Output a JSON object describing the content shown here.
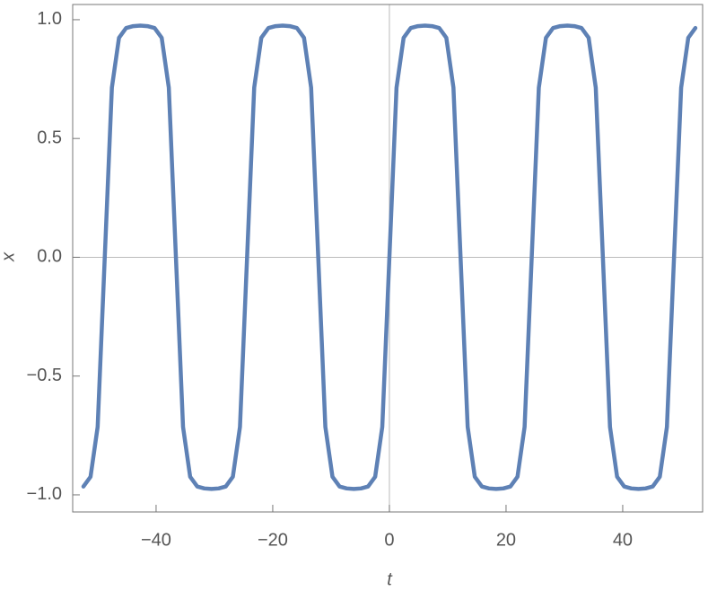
{
  "chart_data": {
    "type": "line",
    "xlabel": "t",
    "ylabel": "x",
    "x": [
      -52.46,
      -51.24,
      -50.02,
      -48.8,
      -47.58,
      -46.36,
      -45.14,
      -43.92,
      -42.7,
      -41.48,
      -40.26,
      -39.04,
      -37.82,
      -36.6,
      -35.38,
      -34.16,
      -32.94,
      -31.72,
      -30.5,
      -29.28,
      -28.06,
      -26.84,
      -25.62,
      -24.4,
      -23.18,
      -21.96,
      -20.74,
      -19.52,
      -18.3,
      -17.08,
      -15.86,
      -14.64,
      -13.42,
      -12.2,
      -10.98,
      -9.76,
      -8.54,
      -7.32,
      -6.1,
      -4.88,
      -3.66,
      -2.44,
      -1.22,
      0,
      1.22,
      2.44,
      3.66,
      4.88,
      6.1,
      7.32,
      8.54,
      9.76,
      10.98,
      12.2,
      13.42,
      14.64,
      15.86,
      17.08,
      18.3,
      19.52,
      20.74,
      21.96,
      23.18,
      24.4,
      25.62,
      26.84,
      28.06,
      29.28,
      30.5,
      31.72,
      32.94,
      34.16,
      35.38,
      36.6,
      37.82,
      39.04,
      40.26,
      41.48,
      42.7,
      43.92,
      45.14,
      46.36,
      47.58,
      48.8,
      50.02,
      51.24,
      52.46
    ],
    "series": [
      {
        "color": "#5e81b5",
        "values": [
          -0.965,
          -0.924,
          -0.714,
          0,
          0.714,
          0.924,
          0.965,
          0.973,
          0.975,
          0.973,
          0.965,
          0.924,
          0.714,
          0,
          -0.714,
          -0.924,
          -0.965,
          -0.973,
          -0.975,
          -0.973,
          -0.965,
          -0.924,
          -0.714,
          0,
          0.714,
          0.924,
          0.965,
          0.973,
          0.975,
          0.973,
          0.965,
          0.924,
          0.714,
          0,
          -0.714,
          -0.924,
          -0.965,
          -0.973,
          -0.975,
          -0.973,
          -0.965,
          -0.924,
          -0.714,
          0,
          0.714,
          0.924,
          0.965,
          0.973,
          0.975,
          0.973,
          0.965,
          0.924,
          0.714,
          0,
          -0.714,
          -0.924,
          -0.965,
          -0.973,
          -0.975,
          -0.973,
          -0.965,
          -0.924,
          -0.714,
          0,
          0.714,
          0.924,
          0.965,
          0.973,
          0.975,
          0.973,
          0.965,
          0.924,
          0.714,
          0,
          -0.714,
          -0.924,
          -0.965,
          -0.973,
          -0.975,
          -0.973,
          -0.965,
          -0.924,
          -0.714,
          0,
          0.714,
          0.924,
          0.965
        ]
      }
    ],
    "xlim": [
      -54.3,
      53.7
    ],
    "ylim": [
      -1.072,
      1.064
    ],
    "xticks": [
      {
        "value": -40,
        "label": "−40"
      },
      {
        "value": -20,
        "label": "−20"
      },
      0,
      20,
      40
    ],
    "yticks": [
      {
        "value": -1,
        "label": "−1.0"
      },
      {
        "value": -0.5,
        "label": "−0.5"
      },
      {
        "value": 0,
        "label": "0.0"
      },
      {
        "value": 0.5,
        "label": "0.5"
      },
      {
        "value": 1,
        "label": "1.0"
      }
    ]
  }
}
